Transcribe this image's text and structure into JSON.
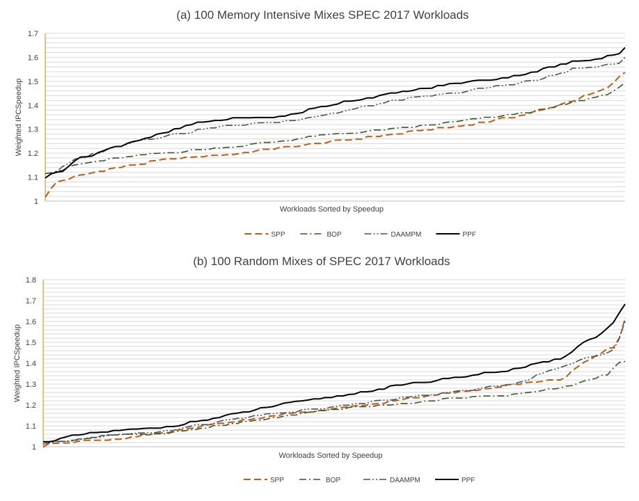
{
  "colors": {
    "SPP": "#c55a11",
    "BOP": "#375623",
    "DAAMPM": "#44546a",
    "PPF": "#000000",
    "axis": "#bf9000",
    "grid": "#d9d9d9"
  },
  "chart_data": [
    {
      "type": "line",
      "title": "(a) 100 Memory Intensive Mixes SPEC 2017 Workloads",
      "xlabel": "Workloads Sorted by Speedup",
      "ylabel": "Weighted IPCSpeedup",
      "ylim": [
        1.0,
        1.7
      ],
      "yticks": [
        "1",
        "1.1",
        "1.2",
        "1.3",
        "1.4",
        "1.5",
        "1.6",
        "1.7"
      ],
      "grid": true,
      "legend_position": "bottom",
      "x_count": 100,
      "series": [
        {
          "name": "SPP",
          "anchors": [
            [
              0,
              1.02
            ],
            [
              2,
              1.08
            ],
            [
              5,
              1.1
            ],
            [
              10,
              1.13
            ],
            [
              20,
              1.17
            ],
            [
              30,
              1.19
            ],
            [
              40,
              1.22
            ],
            [
              50,
              1.25
            ],
            [
              60,
              1.28
            ],
            [
              70,
              1.31
            ],
            [
              80,
              1.35
            ],
            [
              85,
              1.38
            ],
            [
              90,
              1.42
            ],
            [
              95,
              1.46
            ],
            [
              97,
              1.49
            ],
            [
              98,
              1.52
            ],
            [
              99,
              1.54
            ]
          ]
        },
        {
          "name": "BOP",
          "anchors": [
            [
              0,
              1.12
            ],
            [
              3,
              1.13
            ],
            [
              5,
              1.15
            ],
            [
              10,
              1.17
            ],
            [
              20,
              1.2
            ],
            [
              30,
              1.22
            ],
            [
              40,
              1.25
            ],
            [
              50,
              1.28
            ],
            [
              60,
              1.3
            ],
            [
              70,
              1.33
            ],
            [
              80,
              1.36
            ],
            [
              85,
              1.38
            ],
            [
              90,
              1.41
            ],
            [
              95,
              1.44
            ],
            [
              97,
              1.46
            ],
            [
              98,
              1.47
            ],
            [
              99,
              1.49
            ]
          ]
        },
        {
          "name": "DAAMPM",
          "anchors": [
            [
              0,
              1.1
            ],
            [
              3,
              1.14
            ],
            [
              5,
              1.17
            ],
            [
              10,
              1.21
            ],
            [
              15,
              1.25
            ],
            [
              20,
              1.27
            ],
            [
              30,
              1.31
            ],
            [
              40,
              1.33
            ],
            [
              50,
              1.37
            ],
            [
              60,
              1.42
            ],
            [
              70,
              1.45
            ],
            [
              80,
              1.49
            ],
            [
              85,
              1.51
            ],
            [
              90,
              1.55
            ],
            [
              95,
              1.56
            ],
            [
              97,
              1.57
            ],
            [
              98,
              1.58
            ],
            [
              99,
              1.6
            ]
          ]
        },
        {
          "name": "PPF",
          "anchors": [
            [
              0,
              1.1
            ],
            [
              3,
              1.13
            ],
            [
              5,
              1.17
            ],
            [
              10,
              1.21
            ],
            [
              15,
              1.25
            ],
            [
              20,
              1.28
            ],
            [
              25,
              1.32
            ],
            [
              30,
              1.34
            ],
            [
              40,
              1.35
            ],
            [
              45,
              1.38
            ],
            [
              50,
              1.41
            ],
            [
              60,
              1.45
            ],
            [
              70,
              1.49
            ],
            [
              80,
              1.52
            ],
            [
              85,
              1.55
            ],
            [
              90,
              1.58
            ],
            [
              95,
              1.6
            ],
            [
              97,
              1.61
            ],
            [
              98,
              1.62
            ],
            [
              99,
              1.64
            ]
          ]
        }
      ]
    },
    {
      "type": "line",
      "title": "(b) 100 Random Mixes of SPEC 2017 Workloads",
      "xlabel": "Workloads Sorted by Speedup",
      "ylabel": "Weighted IPCSpeedup",
      "ylim": [
        1.0,
        1.8
      ],
      "yticks": [
        "1",
        "1.1",
        "1.2",
        "1.3",
        "1.4",
        "1.5",
        "1.6",
        "1.7",
        "1.8"
      ],
      "grid": true,
      "legend_position": "bottom",
      "x_count": 100,
      "series": [
        {
          "name": "SPP",
          "anchors": [
            [
              0,
              1.0
            ],
            [
              2,
              1.02
            ],
            [
              10,
              1.03
            ],
            [
              20,
              1.06
            ],
            [
              30,
              1.11
            ],
            [
              40,
              1.15
            ],
            [
              50,
              1.18
            ],
            [
              60,
              1.22
            ],
            [
              70,
              1.26
            ],
            [
              80,
              1.3
            ],
            [
              88,
              1.32
            ],
            [
              92,
              1.4
            ],
            [
              95,
              1.45
            ],
            [
              97,
              1.48
            ],
            [
              98,
              1.52
            ],
            [
              99,
              1.6
            ]
          ]
        },
        {
          "name": "BOP",
          "anchors": [
            [
              0,
              1.02
            ],
            [
              5,
              1.03
            ],
            [
              10,
              1.05
            ],
            [
              20,
              1.06
            ],
            [
              30,
              1.1
            ],
            [
              40,
              1.14
            ],
            [
              50,
              1.18
            ],
            [
              60,
              1.2
            ],
            [
              70,
              1.23
            ],
            [
              80,
              1.25
            ],
            [
              88,
              1.28
            ],
            [
              93,
              1.32
            ],
            [
              96,
              1.35
            ],
            [
              98,
              1.4
            ],
            [
              99,
              1.41
            ]
          ]
        },
        {
          "name": "DAAMPM",
          "anchors": [
            [
              0,
              1.01
            ],
            [
              5,
              1.03
            ],
            [
              10,
              1.05
            ],
            [
              20,
              1.07
            ],
            [
              30,
              1.12
            ],
            [
              40,
              1.16
            ],
            [
              50,
              1.19
            ],
            [
              60,
              1.23
            ],
            [
              70,
              1.26
            ],
            [
              80,
              1.3
            ],
            [
              88,
              1.38
            ],
            [
              92,
              1.42
            ],
            [
              95,
              1.44
            ],
            [
              97,
              1.47
            ],
            [
              98,
              1.52
            ],
            [
              99,
              1.62
            ]
          ]
        },
        {
          "name": "PPF",
          "anchors": [
            [
              0,
              1.02
            ],
            [
              5,
              1.05
            ],
            [
              10,
              1.07
            ],
            [
              20,
              1.09
            ],
            [
              30,
              1.14
            ],
            [
              40,
              1.2
            ],
            [
              50,
              1.24
            ],
            [
              60,
              1.29
            ],
            [
              70,
              1.33
            ],
            [
              80,
              1.37
            ],
            [
              88,
              1.42
            ],
            [
              92,
              1.5
            ],
            [
              95,
              1.54
            ],
            [
              97,
              1.6
            ],
            [
              98,
              1.64
            ],
            [
              99,
              1.68
            ]
          ]
        }
      ]
    }
  ]
}
